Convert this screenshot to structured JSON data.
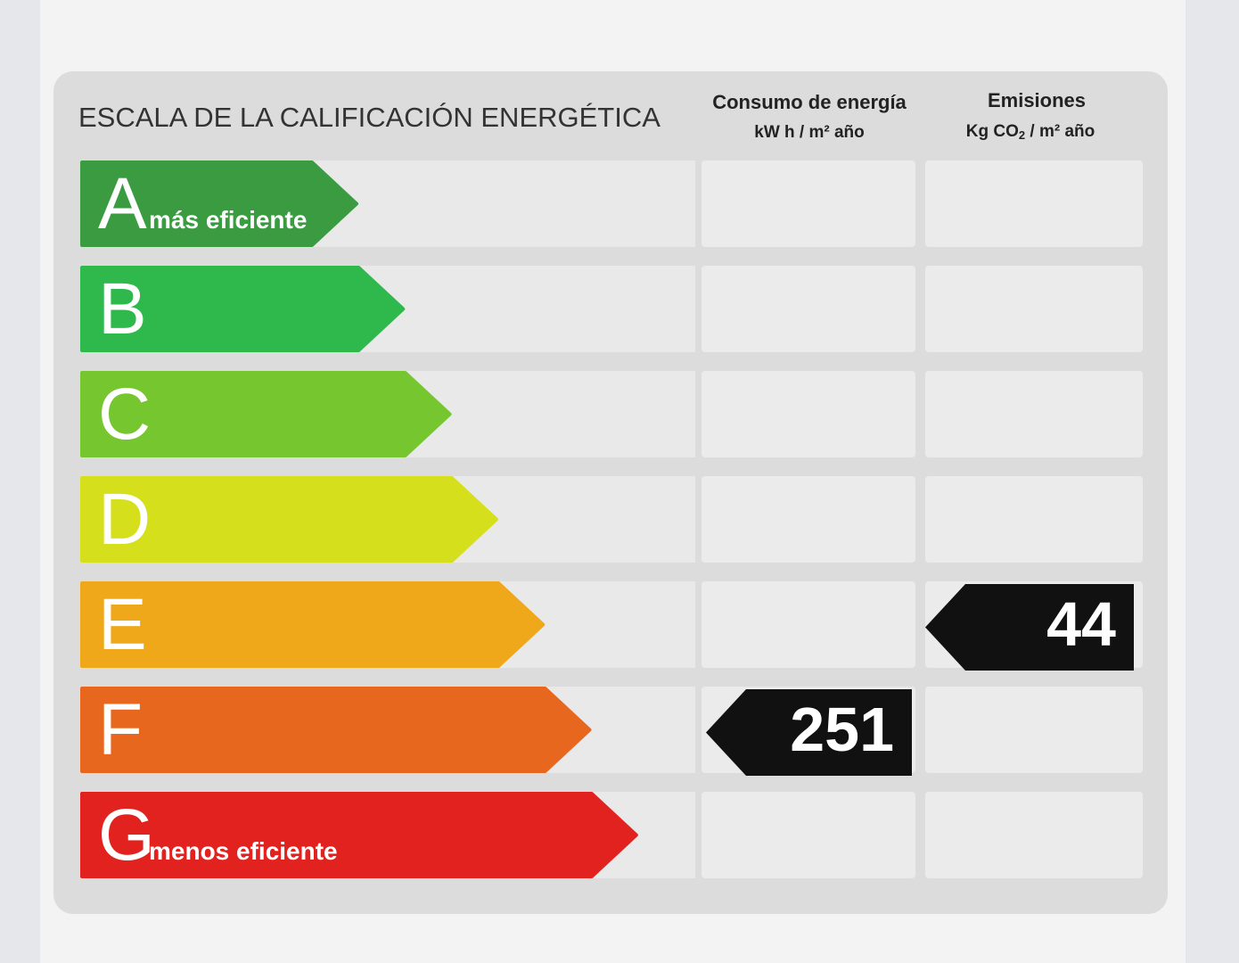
{
  "title": "ESCALA DE LA CALIFICACIÓN ENERGÉTICA",
  "columns": [
    {
      "title": "Consumo de energía",
      "unit": "kW h / m² año"
    },
    {
      "title": "Emisiones",
      "unit_parts": [
        "Kg CO",
        "2",
        " / m² año"
      ]
    }
  ],
  "ratings": [
    {
      "letter": "A",
      "note": "más eficiente",
      "color": "#3b9b40"
    },
    {
      "letter": "B",
      "color": "#2fb84b"
    },
    {
      "letter": "C",
      "color": "#76c630"
    },
    {
      "letter": "D",
      "color": "#d5df1c"
    },
    {
      "letter": "E",
      "color": "#efa81a",
      "emissions": 44
    },
    {
      "letter": "F",
      "color": "#e8671f",
      "consumption": 251
    },
    {
      "letter": "G",
      "note": "menos eficiente",
      "color": "#e2221e"
    }
  ]
}
